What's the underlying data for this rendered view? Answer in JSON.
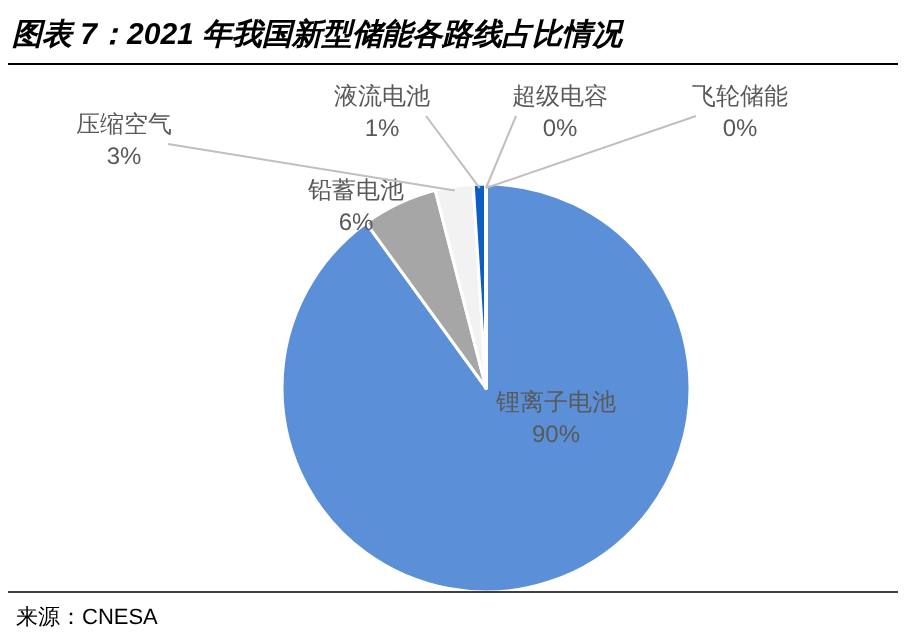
{
  "chart_data": {
    "type": "pie",
    "title": "图表 7：2021 年我国新型储能各路线占比情况",
    "categories": [
      "锂离子电池",
      "铅蓄电池",
      "压缩空气",
      "液流电池",
      "超级电容",
      "飞轮储能"
    ],
    "values": [
      90,
      6,
      3,
      1,
      0,
      0
    ],
    "colors": [
      "#5b8fd8",
      "#a6a6a6",
      "#f2f2f2",
      "#0b5fc4",
      "#9dc3e6",
      "#dae8f6"
    ],
    "value_labels": [
      "90%",
      "6%",
      "3%",
      "1%",
      "0%",
      "0%"
    ],
    "annotations": [
      "来源：CNESA"
    ]
  }
}
